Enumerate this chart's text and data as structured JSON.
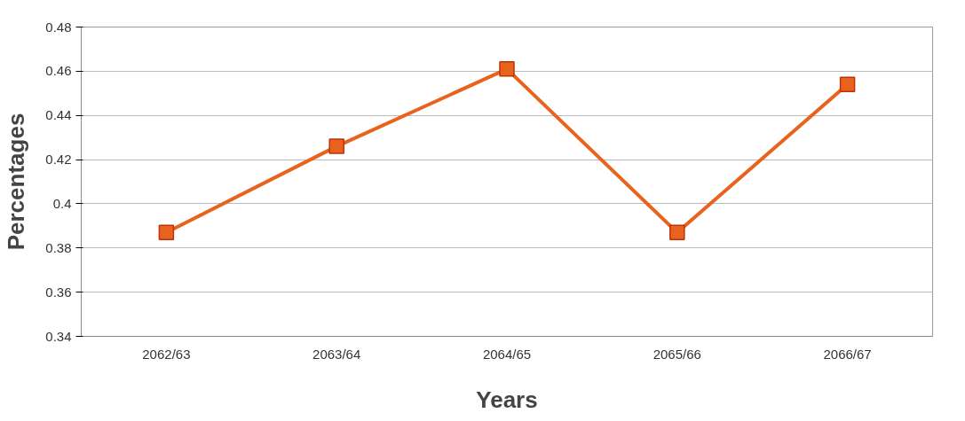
{
  "chart_data": {
    "type": "line",
    "xlabel": "Years",
    "ylabel": "Percentages",
    "categories": [
      "2062/63",
      "2063/64",
      "2064/65",
      "2065/66",
      "2066/67"
    ],
    "series": [
      {
        "color": "#e8641e",
        "values": [
          0.387,
          0.426,
          0.461,
          0.387,
          0.454
        ]
      }
    ],
    "ylim": [
      0.34,
      0.48
    ],
    "yticks": [
      {
        "value": 0.34,
        "label": "0.34"
      },
      {
        "value": 0.36,
        "label": "0.36"
      },
      {
        "value": 0.38,
        "label": "0.38"
      },
      {
        "value": 0.4,
        "label": "0.4"
      },
      {
        "value": 0.42,
        "label": "0.42"
      },
      {
        "value": 0.44,
        "label": "0.44"
      },
      {
        "value": 0.46,
        "label": "0.46"
      },
      {
        "value": 0.48,
        "label": "0.48"
      }
    ],
    "grid": "y",
    "marker": "square",
    "line_style": "solid"
  }
}
